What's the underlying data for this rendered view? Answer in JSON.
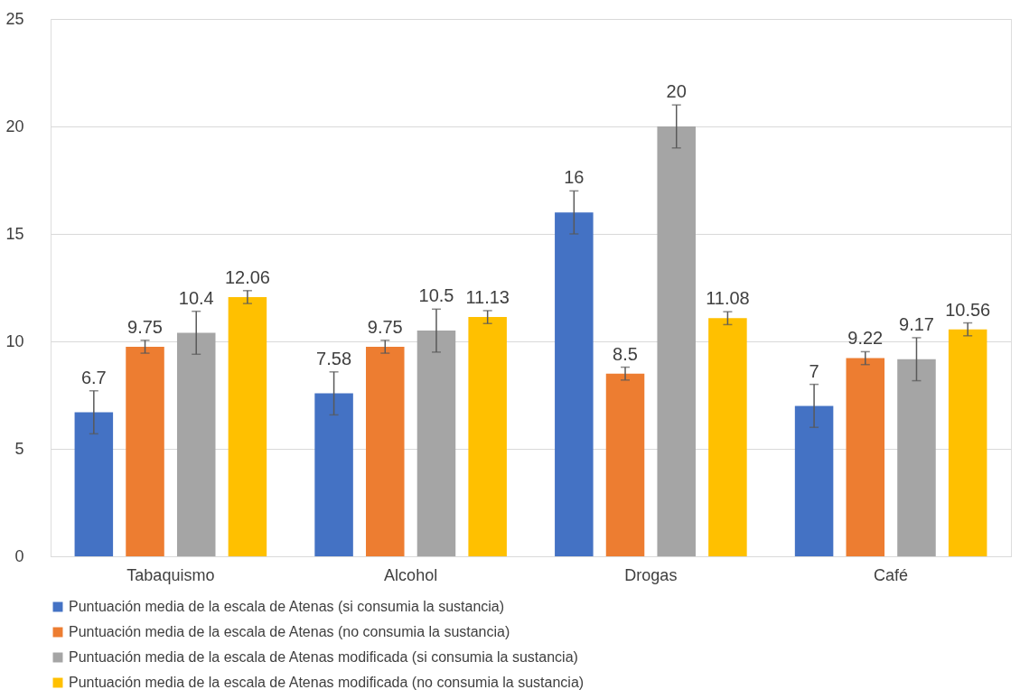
{
  "chart_data": {
    "type": "bar",
    "categories": [
      "Tabaquismo",
      "Alcohol",
      "Drogas",
      "Café"
    ],
    "series": [
      {
        "name": "Puntuación media de la escala de Atenas (si consumia la sustancia)",
        "color": "#4472c4",
        "values": [
          6.7,
          7.58,
          16,
          7
        ],
        "errors": [
          1,
          1,
          1,
          1
        ]
      },
      {
        "name": "Puntuación media de la escala de Atenas (no consumia la sustancia)",
        "color": "#ed7d31",
        "values": [
          9.75,
          9.75,
          8.5,
          9.22
        ],
        "errors": [
          0.3,
          0.3,
          0.3,
          0.3
        ]
      },
      {
        "name": "Puntuación media de la escala de Atenas modificada (si consumia la sustancia)",
        "color": "#a5a5a5",
        "values": [
          10.4,
          10.5,
          20,
          9.17
        ],
        "errors": [
          1,
          1,
          1,
          1
        ]
      },
      {
        "name": "Puntuación media de la escala de Atenas modificada (no consumia la sustancia)",
        "color": "#ffc000",
        "values": [
          12.06,
          11.13,
          11.08,
          10.56
        ],
        "errors": [
          0.3,
          0.3,
          0.3,
          0.3
        ]
      }
    ],
    "ylim": [
      0,
      25
    ],
    "yticks": [
      0,
      5,
      10,
      15,
      20,
      25
    ],
    "grid": "y",
    "legend": "bottom",
    "data_labels": true
  }
}
